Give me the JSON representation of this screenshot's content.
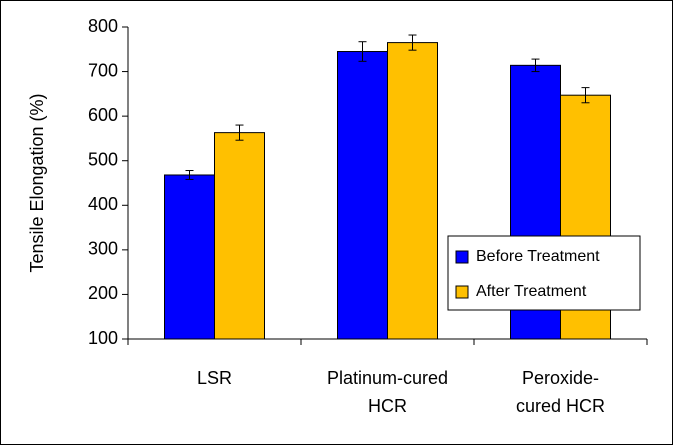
{
  "chart_data": {
    "type": "bar",
    "ylabel": "Tensile Elongation (%)",
    "categories": [
      [
        "LSR"
      ],
      [
        "Platinum-cured",
        "HCR"
      ],
      [
        "Peroxide-",
        "cured HCR"
      ]
    ],
    "series": [
      {
        "name": "Before Treatment",
        "color": "#0000ff",
        "values": [
          468,
          745,
          714
        ],
        "errors": [
          10,
          22,
          14
        ]
      },
      {
        "name": "After Treatment",
        "color": "#ffc000",
        "values": [
          563,
          765,
          647
        ],
        "errors": [
          17,
          17,
          17
        ]
      }
    ],
    "ylim": [
      100,
      800
    ],
    "yticks": [
      100,
      200,
      300,
      400,
      500,
      600,
      700,
      800
    ],
    "grid": false,
    "legend": "right"
  }
}
